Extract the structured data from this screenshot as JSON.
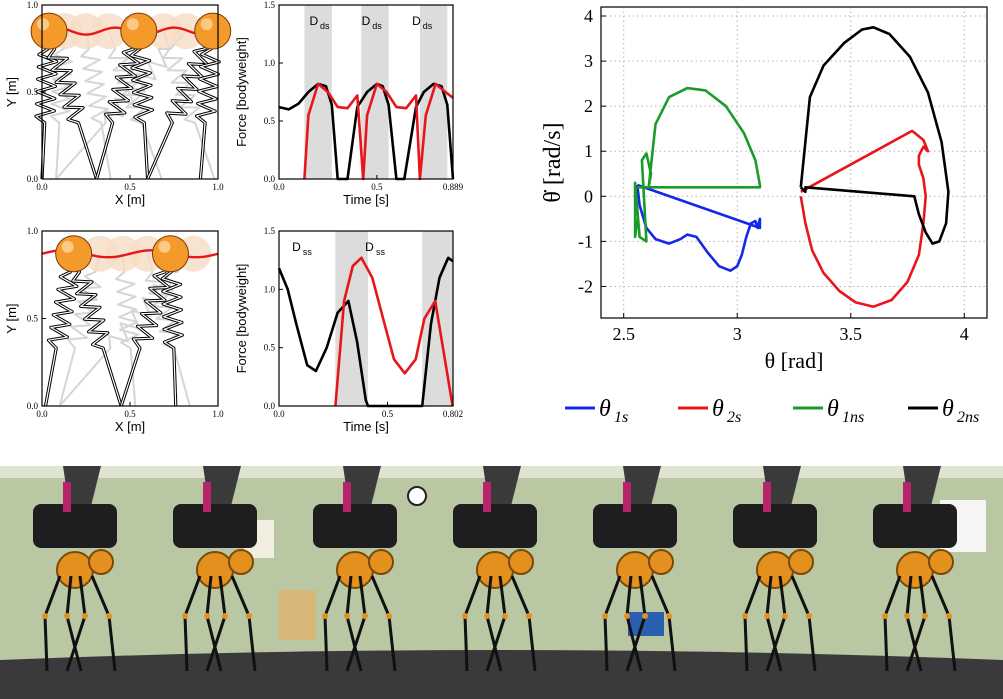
{
  "gait_panels": [
    {
      "xlabel": "X [m]",
      "ylabel": "Y [m]",
      "x_ticks": [
        "0.0",
        "0.5",
        "1.0"
      ],
      "y_ticks": [
        "0.0",
        "0.5",
        "1.0"
      ],
      "xlim": [
        0,
        1
      ],
      "ylim": [
        0,
        1
      ],
      "hip_trajectory_color": "#e8161b",
      "hip_positions_x": [
        0.04,
        0.55,
        0.97
      ],
      "hip_height": 0.85,
      "ghost_hip_positions_x": [
        0.13,
        0.25,
        0.38,
        0.69,
        0.82
      ],
      "leg_foot_positions_x": [
        0.0,
        0.31,
        0.6,
        0.9
      ],
      "body_color": "#f39a2a"
    },
    {
      "xlabel": "X [m]",
      "ylabel": "Y [m]",
      "x_ticks": [
        "0.0",
        "0.5",
        "1.0"
      ],
      "y_ticks": [
        "0.0",
        "0.5",
        "1.0"
      ],
      "xlim": [
        0,
        1
      ],
      "ylim": [
        0,
        1
      ],
      "hip_trajectory_color": "#e8161b",
      "hip_positions_x": [
        0.18,
        0.73
      ],
      "hip_height": 0.87,
      "ghost_hip_positions_x": [
        0.33,
        0.46,
        0.6,
        0.86
      ],
      "leg_foot_positions_x": [
        0.02,
        0.45,
        0.76
      ],
      "body_color": "#f39a2a"
    }
  ],
  "force_panels": [
    {
      "xlabel": "Time [s]",
      "ylabel": "Force [bodyweight]",
      "x_ticks": [
        "0.0",
        "0.5",
        "0.889"
      ],
      "y_ticks": [
        "0.0",
        "0.5",
        "1.0",
        "1.5"
      ],
      "xlim": [
        0,
        0.889
      ],
      "ylim": [
        0,
        1.5
      ],
      "phase_labels": [
        {
          "text": "D",
          "sub": "ds",
          "x": 0.2
        },
        {
          "text": "D",
          "sub": "ds",
          "x": 0.5
        },
        {
          "text": "D",
          "sub": "ds",
          "x": 0.79
        }
      ],
      "shaded_intervals": [
        [
          0.13,
          0.27
        ],
        [
          0.42,
          0.56
        ],
        [
          0.72,
          0.86
        ]
      ]
    },
    {
      "xlabel": "Time [s]",
      "ylabel": "Force [bodyweight]",
      "x_ticks": [
        "0.0",
        "0.5",
        "0.802"
      ],
      "y_ticks": [
        "0.0",
        "0.5",
        "1.0",
        "1.5"
      ],
      "xlim": [
        0,
        0.802
      ],
      "ylim": [
        0,
        1.5
      ],
      "phase_labels": [
        {
          "text": "D",
          "sub": "ss",
          "x": 0.1
        },
        {
          "text": "D",
          "sub": "ss",
          "x": 0.52
        }
      ],
      "shaded_intervals": [
        [
          0.26,
          0.41
        ],
        [
          0.66,
          0.802
        ]
      ]
    }
  ],
  "chart_data": [
    {
      "type": "line",
      "title": "",
      "xlabel": "Time [s]",
      "ylabel": "Force [bodyweight]",
      "xlim": [
        0,
        0.889
      ],
      "ylim": [
        0,
        1.5
      ],
      "series": [
        {
          "color": "#000000",
          "x": [
            0.0,
            0.05,
            0.1,
            0.15,
            0.2,
            0.24,
            0.27,
            0.3,
            0.35,
            0.4,
            0.45,
            0.5,
            0.53,
            0.56,
            0.6,
            0.64,
            0.7,
            0.74,
            0.79,
            0.83,
            0.86,
            0.889
          ],
          "y": [
            0.62,
            0.6,
            0.65,
            0.75,
            0.82,
            0.8,
            0.64,
            0.0,
            0.0,
            0.62,
            0.75,
            0.82,
            0.8,
            0.64,
            0.0,
            0.0,
            0.62,
            0.75,
            0.82,
            0.8,
            0.64,
            0.0
          ]
        },
        {
          "color": "#e8161b",
          "x": [
            0.13,
            0.15,
            0.2,
            0.25,
            0.3,
            0.35,
            0.4,
            0.43,
            0.45,
            0.5,
            0.55,
            0.6,
            0.65,
            0.7,
            0.72,
            0.75,
            0.8,
            0.85,
            0.889
          ],
          "y": [
            0.0,
            0.55,
            0.82,
            0.75,
            0.62,
            0.61,
            0.72,
            0.0,
            0.55,
            0.82,
            0.75,
            0.62,
            0.61,
            0.72,
            0.0,
            0.55,
            0.82,
            0.75,
            0.7
          ]
        }
      ]
    },
    {
      "type": "line",
      "title": "",
      "xlabel": "Time [s]",
      "ylabel": "Force [bodyweight]",
      "xlim": [
        0,
        0.802
      ],
      "ylim": [
        0,
        1.5
      ],
      "series": [
        {
          "color": "#000000",
          "x": [
            0.0,
            0.04,
            0.08,
            0.13,
            0.17,
            0.22,
            0.27,
            0.32,
            0.36,
            0.4,
            0.41,
            0.5,
            0.66,
            0.7,
            0.74,
            0.78,
            0.802
          ],
          "y": [
            1.18,
            1.0,
            0.7,
            0.35,
            0.3,
            0.5,
            0.8,
            0.9,
            0.55,
            0.05,
            0.0,
            0.0,
            0.0,
            0.7,
            1.1,
            1.27,
            1.24
          ]
        },
        {
          "color": "#e8161b",
          "x": [
            0.26,
            0.3,
            0.34,
            0.38,
            0.43,
            0.48,
            0.53,
            0.58,
            0.63,
            0.67,
            0.72,
            0.76,
            0.8
          ],
          "y": [
            0.0,
            0.9,
            1.2,
            1.27,
            1.1,
            0.75,
            0.4,
            0.28,
            0.4,
            0.75,
            0.9,
            0.45,
            0.0
          ]
        }
      ]
    },
    {
      "type": "line",
      "title": "",
      "xlabel": "θ [rad]",
      "ylabel": "θ̇ [rad/s]",
      "xlim": [
        2.4,
        4.1
      ],
      "ylim": [
        -2.7,
        4.2
      ],
      "x_ticks": [
        "2.5",
        "3",
        "3.5",
        "4"
      ],
      "y_ticks": [
        "-2",
        "-1",
        "0",
        "1",
        "2",
        "3",
        "4"
      ],
      "grid": true,
      "legend": "bottom",
      "series": [
        {
          "name": "θ1s",
          "color": "#1428e8",
          "x": [
            2.56,
            2.57,
            2.6,
            2.64,
            2.7,
            2.75,
            2.78,
            2.82,
            2.87,
            2.92,
            2.97,
            3.0,
            3.02,
            3.04,
            3.06,
            3.08,
            3.09,
            3.1,
            3.1,
            2.56
          ],
          "y": [
            0.25,
            -0.2,
            -0.7,
            -0.95,
            -1.05,
            -0.95,
            -0.85,
            -0.9,
            -1.25,
            -1.55,
            -1.65,
            -1.55,
            -1.3,
            -0.9,
            -0.6,
            -0.55,
            -0.7,
            -0.5,
            -0.7,
            0.25
          ]
        },
        {
          "name": "θ2s",
          "color": "#e8161b",
          "x": [
            3.28,
            3.3,
            3.33,
            3.38,
            3.45,
            3.52,
            3.6,
            3.68,
            3.75,
            3.8,
            3.82,
            3.83,
            3.82,
            3.8,
            3.8,
            3.82,
            3.84,
            3.82,
            3.77,
            3.28
          ],
          "y": [
            0.0,
            -0.6,
            -1.2,
            -1.7,
            -2.1,
            -2.35,
            -2.45,
            -2.3,
            -1.9,
            -1.3,
            -0.6,
            0.0,
            0.4,
            0.7,
            0.9,
            1.1,
            1.0,
            1.25,
            1.45,
            0.1
          ]
        },
        {
          "name": "θ1ns",
          "color": "#1c9a2a",
          "x": [
            2.56,
            2.55,
            2.55,
            2.57,
            2.6,
            2.58,
            2.6,
            2.62,
            2.61,
            2.64,
            2.7,
            2.78,
            2.86,
            2.95,
            3.03,
            3.08,
            3.1,
            3.1,
            2.56
          ],
          "y": [
            -0.5,
            -0.9,
            0.3,
            -0.9,
            -1.0,
            0.8,
            0.95,
            0.5,
            0.2,
            1.6,
            2.2,
            2.4,
            2.35,
            2.0,
            1.4,
            0.8,
            0.25,
            0.2,
            0.2
          ]
        },
        {
          "name": "θ2ns",
          "color": "#000000",
          "x": [
            3.28,
            3.32,
            3.38,
            3.47,
            3.55,
            3.6,
            3.67,
            3.76,
            3.84,
            3.9,
            3.93,
            3.92,
            3.89,
            3.86,
            3.83,
            3.8,
            3.78,
            3.3,
            3.3,
            3.28
          ],
          "y": [
            0.2,
            2.2,
            2.9,
            3.4,
            3.7,
            3.75,
            3.6,
            3.1,
            2.3,
            1.2,
            0.1,
            -0.6,
            -1.0,
            -1.05,
            -0.8,
            -0.4,
            0.0,
            0.2,
            0.1,
            0.2
          ]
        }
      ]
    }
  ],
  "phase_legend": [
    {
      "color": "#1428e8",
      "symbol": "θ",
      "sub": "1s"
    },
    {
      "color": "#e8161b",
      "symbol": "θ",
      "sub": "2s"
    },
    {
      "color": "#1c9a2a",
      "symbol": "θ",
      "sub": "1ns"
    },
    {
      "color": "#000000",
      "symbol": "θ",
      "sub": "2ns"
    }
  ],
  "photo_strip": {
    "robot_count": 7,
    "wall_color": "#b9c7a3",
    "floor_color": "#3a3a3c",
    "robot_color": "#1e1e20",
    "gear_color": "#e4901e"
  }
}
